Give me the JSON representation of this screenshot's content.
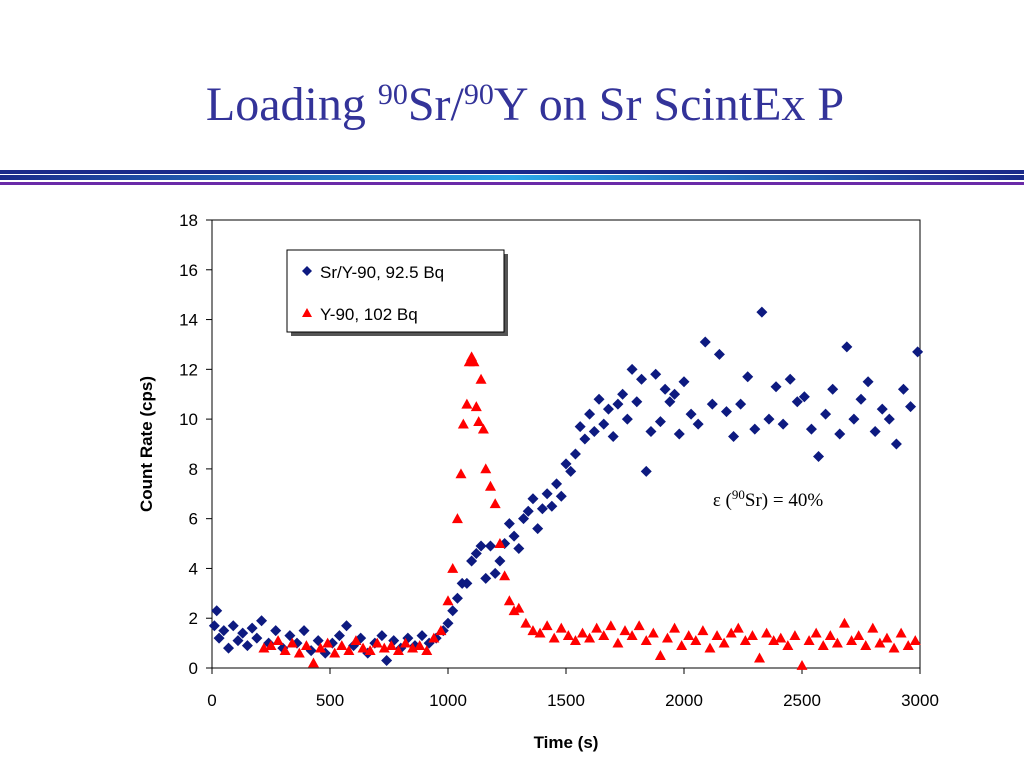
{
  "chart_data": {
    "type": "scatter",
    "title_runs": [
      {
        "text": "Loading "
      },
      {
        "text": "90",
        "sup": true
      },
      {
        "text": "Sr/"
      },
      {
        "text": "90",
        "sup": true
      },
      {
        "text": "Y on Sr ScintEx P"
      }
    ],
    "x_label": "Time (s)",
    "y_label": "Count Rate (cps)",
    "annotation_runs": [
      {
        "text": "ε ("
      },
      {
        "text": "90",
        "sup": true
      },
      {
        "text": "Sr) = 40%"
      }
    ],
    "xlim": [
      0,
      3000
    ],
    "xticks": [
      0,
      500,
      1000,
      1500,
      2000,
      2500,
      3000
    ],
    "ylim": [
      0,
      18
    ],
    "yticks": [
      0,
      2,
      4,
      6,
      8,
      10,
      12,
      14,
      16,
      18
    ],
    "series": [
      {
        "name": "Sr/Y-90, 92.5 Bq",
        "color": "#0d1a80",
        "marker": "diamond",
        "x": [
          10,
          20,
          30,
          50,
          70,
          90,
          110,
          130,
          150,
          170,
          190,
          210,
          240,
          270,
          300,
          330,
          360,
          390,
          420,
          450,
          480,
          510,
          540,
          570,
          600,
          630,
          660,
          690,
          720,
          740,
          770,
          800,
          830,
          860,
          890,
          920,
          950,
          980,
          1000,
          1020,
          1040,
          1060,
          1080,
          1100,
          1120,
          1140,
          1160,
          1180,
          1200,
          1220,
          1240,
          1260,
          1280,
          1300,
          1320,
          1340,
          1360,
          1380,
          1400,
          1420,
          1440,
          1460,
          1480,
          1500,
          1520,
          1540,
          1560,
          1580,
          1600,
          1620,
          1640,
          1660,
          1680,
          1700,
          1720,
          1740,
          1760,
          1780,
          1800,
          1820,
          1840,
          1860,
          1880,
          1900,
          1920,
          1940,
          1960,
          1980,
          2000,
          2030,
          2060,
          2090,
          2120,
          2150,
          2180,
          2210,
          2240,
          2270,
          2300,
          2330,
          2360,
          2390,
          2420,
          2450,
          2480,
          2510,
          2540,
          2570,
          2600,
          2630,
          2660,
          2690,
          2720,
          2750,
          2780,
          2810,
          2840,
          2870,
          2900,
          2930,
          2960,
          2990
        ],
        "values": [
          1.7,
          2.3,
          1.2,
          1.5,
          0.8,
          1.7,
          1.1,
          1.4,
          0.9,
          1.6,
          1.2,
          1.9,
          1.0,
          1.5,
          0.8,
          1.3,
          1.0,
          1.5,
          0.7,
          1.1,
          0.6,
          1.0,
          1.3,
          1.7,
          0.9,
          1.2,
          0.6,
          1.0,
          1.3,
          0.3,
          1.1,
          0.8,
          1.2,
          0.9,
          1.3,
          1.0,
          1.2,
          1.5,
          1.8,
          2.3,
          2.8,
          3.4,
          3.4,
          4.3,
          4.6,
          4.9,
          3.6,
          4.9,
          3.8,
          4.3,
          5.0,
          5.8,
          5.3,
          4.8,
          6.0,
          6.3,
          6.8,
          5.6,
          6.4,
          7.0,
          6.5,
          7.4,
          6.9,
          8.2,
          7.9,
          8.6,
          9.7,
          9.2,
          10.2,
          9.5,
          10.8,
          9.8,
          10.4,
          9.3,
          10.6,
          11.0,
          10.0,
          12.0,
          10.7,
          11.6,
          7.9,
          9.5,
          11.8,
          9.9,
          11.2,
          10.7,
          11.0,
          9.4,
          11.5,
          10.2,
          9.8,
          13.1,
          10.6,
          12.6,
          10.3,
          9.3,
          10.6,
          11.7,
          9.6,
          14.3,
          10.0,
          11.3,
          9.8,
          11.6,
          10.7,
          10.9,
          9.6,
          8.5,
          10.2,
          11.2,
          9.4,
          12.9,
          10.0,
          10.8,
          11.5,
          9.5,
          10.4,
          10.0,
          9.0,
          11.2,
          10.5,
          12.7
        ]
      },
      {
        "name": "Y-90, 102 Bq",
        "color": "#ff0000",
        "marker": "triangle",
        "x": [
          220,
          250,
          280,
          310,
          340,
          370,
          400,
          430,
          460,
          490,
          520,
          550,
          580,
          610,
          640,
          670,
          700,
          730,
          760,
          790,
          820,
          850,
          880,
          910,
          940,
          970,
          1000,
          1020,
          1040,
          1055,
          1065,
          1080,
          1090,
          1100,
          1110,
          1120,
          1130,
          1140,
          1150,
          1160,
          1180,
          1200,
          1220,
          1240,
          1260,
          1280,
          1300,
          1330,
          1360,
          1390,
          1420,
          1450,
          1480,
          1510,
          1540,
          1570,
          1600,
          1630,
          1660,
          1690,
          1720,
          1750,
          1780,
          1810,
          1840,
          1870,
          1900,
          1930,
          1960,
          1990,
          2020,
          2050,
          2080,
          2110,
          2140,
          2170,
          2200,
          2230,
          2260,
          2290,
          2320,
          2350,
          2380,
          2410,
          2440,
          2470,
          2500,
          2530,
          2560,
          2590,
          2620,
          2650,
          2680,
          2710,
          2740,
          2770,
          2800,
          2830,
          2860,
          2890,
          2920,
          2950,
          2980
        ],
        "values": [
          0.8,
          0.9,
          1.1,
          0.7,
          1.0,
          0.6,
          0.9,
          0.2,
          0.8,
          1.0,
          0.6,
          0.9,
          0.7,
          1.1,
          0.8,
          0.7,
          1.0,
          0.8,
          0.9,
          0.7,
          1.0,
          0.8,
          0.9,
          0.7,
          1.2,
          1.5,
          2.7,
          4.0,
          6.0,
          7.8,
          9.8,
          10.6,
          12.3,
          12.5,
          12.3,
          10.5,
          9.9,
          11.6,
          9.6,
          8.0,
          7.3,
          6.6,
          5.0,
          3.7,
          2.7,
          2.3,
          2.4,
          1.8,
          1.5,
          1.4,
          1.7,
          1.2,
          1.6,
          1.3,
          1.1,
          1.4,
          1.2,
          1.6,
          1.3,
          1.7,
          1.0,
          1.5,
          1.3,
          1.7,
          1.1,
          1.4,
          0.5,
          1.2,
          1.6,
          0.9,
          1.3,
          1.1,
          1.5,
          0.8,
          1.3,
          1.0,
          1.4,
          1.6,
          1.1,
          1.3,
          0.4,
          1.4,
          1.1,
          1.2,
          0.9,
          1.3,
          0.1,
          1.1,
          1.4,
          0.9,
          1.3,
          1.0,
          1.8,
          1.1,
          1.3,
          0.9,
          1.6,
          1.0,
          1.2,
          0.8,
          1.4,
          0.9,
          1.1
        ]
      }
    ]
  }
}
